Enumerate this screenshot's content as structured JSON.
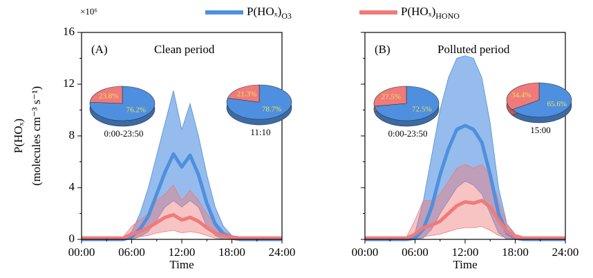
{
  "legend": {
    "position": "top"
  },
  "chart_data": [
    {
      "type": "line",
      "panel_label": "(A)",
      "title": "Clean period",
      "xlabel": "Time",
      "ylabel": [
        "P(HOₓ)",
        "(molecules cm⁻³ s⁻¹)"
      ],
      "y_multiplier": "×10⁶",
      "xlim": [
        0,
        24
      ],
      "ylim": [
        0,
        16
      ],
      "xticks": [
        {
          "value": 0,
          "label": "00:00"
        },
        {
          "value": 6,
          "label": "06:00"
        },
        {
          "value": 12,
          "label": "12:00"
        },
        {
          "value": 18,
          "label": "18:00"
        },
        {
          "value": 24,
          "label": "24:00"
        }
      ],
      "yticks": [
        0,
        4,
        8,
        12,
        16
      ],
      "x": [
        0,
        1,
        2,
        3,
        4,
        5,
        6,
        7,
        8,
        9,
        10,
        11,
        12,
        13,
        14,
        15,
        16,
        17,
        18,
        19,
        20,
        21,
        22,
        23,
        24
      ],
      "series": [
        {
          "name": "P(HOₓ)",
          "name_subscript": "O3",
          "color": "#4f8fdf",
          "values": [
            0,
            0,
            0,
            0,
            0,
            0,
            0.2,
            0.8,
            1.8,
            3.5,
            5.2,
            6.6,
            5.6,
            6.5,
            5.0,
            2.8,
            1.2,
            0.4,
            0.1,
            0,
            0,
            0,
            0,
            0,
            0
          ],
          "upper": [
            0,
            0,
            0,
            0,
            0,
            0,
            0.6,
            2,
            4,
            6.5,
            9,
            11.5,
            8.5,
            10.5,
            8,
            5,
            2.5,
            1,
            0.3,
            0,
            0,
            0,
            0,
            0,
            0
          ],
          "lower": [
            0,
            0,
            0,
            0,
            0,
            0,
            0,
            0.2,
            0.6,
            1.5,
            2.5,
            3,
            2.5,
            3,
            2.5,
            1,
            0.3,
            0,
            0,
            0,
            0,
            0,
            0,
            0,
            0
          ]
        },
        {
          "name": "P(HOₓ)",
          "name_subscript": "HONO",
          "color": "#f07a7a",
          "values": [
            0.1,
            0.1,
            0.1,
            0.1,
            0.1,
            0.1,
            0.4,
            0.6,
            0.9,
            1.3,
            1.7,
            1.9,
            1.5,
            1.7,
            1.4,
            0.9,
            0.5,
            0.3,
            0.1,
            0.1,
            0.1,
            0.1,
            0.1,
            0.1,
            0.1
          ],
          "upper": [
            0.2,
            0.2,
            0.2,
            0.2,
            0.2,
            0.2,
            1,
            1.5,
            2,
            3,
            3.5,
            4.2,
            3,
            3.8,
            3,
            2,
            1.2,
            0.6,
            0.3,
            0.2,
            0.2,
            0.2,
            0.2,
            0.2,
            0.2
          ],
          "lower": [
            0,
            0,
            0,
            0,
            0,
            0,
            0,
            0.2,
            0.3,
            0.5,
            0.6,
            0.7,
            0.5,
            0.6,
            0.5,
            0.3,
            0.1,
            0,
            0,
            0,
            0,
            0,
            0,
            0,
            0
          ]
        }
      ],
      "pies": [
        {
          "caption": "0:00-23:50",
          "values": [
            76.2,
            23.8
          ],
          "value_labels": [
            "76.2%",
            "23.8%"
          ]
        },
        {
          "caption": "11:10",
          "values": [
            78.7,
            21.3
          ],
          "value_labels": [
            "78.7%",
            "21.3%"
          ]
        }
      ]
    },
    {
      "type": "line",
      "panel_label": "(B)",
      "title": "Polluted period",
      "xlabel": "Time",
      "xlim": [
        0,
        24
      ],
      "ylim": [
        0,
        16
      ],
      "xticks": [
        {
          "value": 0,
          "label": "00:00"
        },
        {
          "value": 6,
          "label": "06:00"
        },
        {
          "value": 12,
          "label": "12:00"
        },
        {
          "value": 18,
          "label": "18:00"
        },
        {
          "value": 24,
          "label": "24:00"
        }
      ],
      "x": [
        0,
        1,
        2,
        3,
        4,
        5,
        6,
        7,
        8,
        9,
        10,
        11,
        12,
        13,
        14,
        15,
        16,
        17,
        18,
        19,
        20,
        21,
        22,
        23,
        24
      ],
      "series": [
        {
          "name": "P(HOₓ)",
          "name_subscript": "O3",
          "color": "#4f8fdf",
          "values": [
            0,
            0,
            0,
            0,
            0,
            0,
            0.1,
            0.8,
            2.5,
            5,
            7,
            8.5,
            8.8,
            8.5,
            7.5,
            5,
            2,
            0.5,
            0.1,
            0,
            0,
            0,
            0,
            0,
            0
          ],
          "upper": [
            0,
            0,
            0,
            0,
            0,
            0,
            0.5,
            3,
            6.5,
            10,
            12.5,
            14,
            14.2,
            14,
            12.5,
            9,
            4,
            1.2,
            0.3,
            0,
            0,
            0,
            0,
            0,
            0
          ],
          "lower": [
            0,
            0,
            0,
            0,
            0,
            0,
            0,
            0.1,
            0.8,
            2,
            3,
            4,
            4.5,
            4.2,
            3.5,
            2,
            0.5,
            0,
            0,
            0,
            0,
            0,
            0,
            0,
            0
          ]
        },
        {
          "name": "P(HOₓ)",
          "name_subscript": "HONO",
          "color": "#f07a7a",
          "values": [
            0.1,
            0.1,
            0.1,
            0.1,
            0.1,
            0.1,
            0.4,
            0.9,
            1.1,
            1.4,
            2,
            2.6,
            2.9,
            2.8,
            3,
            2.5,
            1.5,
            0.6,
            0.2,
            0.1,
            0.1,
            0.1,
            0.1,
            0.1,
            0.1
          ],
          "upper": [
            0.2,
            0.2,
            0.2,
            0.2,
            0.2,
            0.2,
            1.5,
            3,
            3,
            3.5,
            4.5,
            5.5,
            5.8,
            5.5,
            5.8,
            5,
            3,
            1.2,
            0.4,
            0.2,
            0.2,
            0.2,
            0.2,
            0.2,
            0.2
          ],
          "lower": [
            0,
            0,
            0,
            0,
            0,
            0,
            0,
            0.2,
            0.3,
            0.4,
            0.6,
            0.8,
            0.9,
            0.9,
            1,
            0.7,
            0.3,
            0.1,
            0,
            0,
            0,
            0,
            0,
            0,
            0
          ]
        }
      ],
      "pies": [
        {
          "caption": "0:00-23:50",
          "values": [
            72.5,
            27.5
          ],
          "value_labels": [
            "72.5%",
            "27.5%"
          ]
        },
        {
          "caption": "15:00",
          "values": [
            65.6,
            34.4
          ],
          "value_labels": [
            "65.6%",
            "34.4%"
          ]
        }
      ]
    }
  ]
}
